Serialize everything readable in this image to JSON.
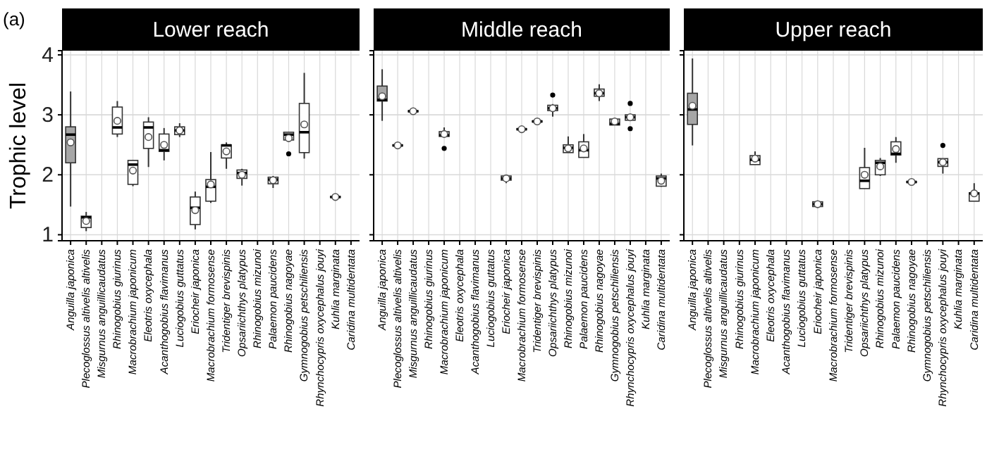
{
  "chart_data": [
    {
      "type": "box",
      "title": "Lower reach",
      "ylabel": "Trophic level",
      "annotations": [
        "(a)"
      ],
      "ylim": [
        0.9,
        4.07
      ],
      "yticks": [
        1,
        2,
        3,
        4
      ],
      "grid": true,
      "marker": "circle",
      "categories": [
        "Anguilla japonica",
        "Plecoglossus altivelis altivelis",
        "Misgurnus anguillicaudatus",
        "Rhinogobius giurinus",
        "Macrobrachium japonicum",
        "Eleotris oxycephala",
        "Acanthogobius flavimanus",
        "Luciogobius guttatus",
        "Eriocheir japonica",
        "Macrobrachium formosense",
        "Tridentiger brevispinis",
        "Opsariichthys platypus",
        "Rhinogobius mizunoi",
        "Palaemon paucidens",
        "Rhinogobius nagoyae",
        "Gymnogobius petschiliensis",
        "Rhynchocypris oxycephalus jouyi",
        "Kuhlia marginata",
        "Caridina multidentata"
      ],
      "series": [
        {
          "color": "#a6a6a6",
          "boxes": [
            {
              "low": 1.47,
              "q1": 2.2,
              "median": 2.67,
              "q3": 2.8,
              "high": 3.39,
              "mean": 2.54
            },
            null,
            null,
            null,
            null,
            null,
            null,
            null,
            null,
            null,
            null,
            null,
            null,
            null,
            null,
            null,
            null,
            null,
            null
          ]
        },
        {
          "color": "#ffffff",
          "boxes": [
            null,
            {
              "low": 1.06,
              "q1": 1.12,
              "median": 1.29,
              "q3": 1.31,
              "high": 1.38,
              "mean": 1.23
            },
            null,
            {
              "low": 2.63,
              "q1": 2.68,
              "median": 2.79,
              "q3": 3.13,
              "high": 3.23,
              "mean": 2.9
            },
            {
              "low": 1.81,
              "q1": 1.84,
              "median": 2.17,
              "q3": 2.24,
              "high": 2.25,
              "mean": 2.07
            },
            {
              "low": 2.13,
              "q1": 2.44,
              "median": 2.79,
              "q3": 2.88,
              "high": 2.96,
              "mean": 2.63
            },
            {
              "low": 2.24,
              "q1": 2.39,
              "median": 2.41,
              "q3": 2.68,
              "high": 2.78,
              "mean": 2.5
            },
            {
              "low": 2.63,
              "q1": 2.67,
              "median": 2.74,
              "q3": 2.8,
              "high": 2.86,
              "mean": 2.74
            },
            {
              "low": 1.09,
              "q1": 1.17,
              "median": 1.45,
              "q3": 1.63,
              "high": 1.72,
              "mean": 1.41
            },
            {
              "low": 1.53,
              "q1": 1.56,
              "median": 1.8,
              "q3": 1.92,
              "high": 2.38,
              "mean": 1.84
            },
            {
              "low": 2.1,
              "q1": 2.28,
              "median": 2.49,
              "q3": 2.5,
              "high": 2.54,
              "mean": 2.39
            },
            {
              "low": 1.82,
              "q1": 1.94,
              "median": 2.03,
              "q3": 2.08,
              "high": 2.1,
              "mean": 2.0
            },
            null,
            {
              "low": 1.78,
              "q1": 1.85,
              "median": 1.92,
              "q3": 1.96,
              "high": 1.98,
              "mean": 1.91
            },
            {
              "low": 2.58,
              "q1": 2.58,
              "median": 2.67,
              "q3": 2.71,
              "high": 2.72,
              "mean": 2.61,
              "outliers": [
                2.35
              ]
            },
            {
              "low": 2.27,
              "q1": 2.37,
              "median": 2.71,
              "q3": 3.19,
              "high": 3.7,
              "mean": 2.84
            },
            null,
            {
              "low": 1.61,
              "q1": 1.62,
              "median": 1.63,
              "q3": 1.64,
              "high": 1.65,
              "mean": 1.63
            },
            null
          ]
        }
      ]
    },
    {
      "type": "box",
      "title": "Middle reach",
      "ylim": [
        0.9,
        4.07
      ],
      "yticks": [
        1,
        2,
        3,
        4
      ],
      "grid": true,
      "marker": "circle",
      "tick_labels": "x",
      "categories": [
        "Anguilla japonica",
        "Plecoglossus altivelis altivelis",
        "Misgurnus anguillicaudatus",
        "Rhinogobius giurinus",
        "Macrobrachium japonicum",
        "Eleotris oxycephala",
        "Acanthogobius flavimanus",
        "Luciogobius guttatus",
        "Eriocheir japonica",
        "Macrobrachium formosense",
        "Tridentiger brevispinis",
        "Opsariichthys platypus",
        "Rhinogobius mizunoi",
        "Palaemon paucidens",
        "Rhinogobius nagoyae",
        "Gymnogobius petschiliensis",
        "Rhynchocypris oxycephalus jouyi",
        "Kuhlia marginata",
        "Caridina multidentata"
      ],
      "series": [
        {
          "color": "#a6a6a6",
          "boxes": [
            {
              "low": 2.9,
              "q1": 3.23,
              "median": 3.25,
              "q3": 3.48,
              "high": 3.76,
              "mean": 3.31
            },
            null,
            null,
            null,
            null,
            null,
            null,
            null,
            null,
            null,
            null,
            null,
            null,
            null,
            null,
            null,
            null,
            null,
            null
          ]
        },
        {
          "color": "#ffffff",
          "boxes": [
            null,
            {
              "low": 2.47,
              "q1": 2.48,
              "median": 2.49,
              "q3": 2.5,
              "high": 2.51,
              "mean": 2.49
            },
            {
              "low": 3.04,
              "q1": 3.05,
              "median": 3.06,
              "q3": 3.07,
              "high": 3.08,
              "mean": 3.06
            },
            null,
            {
              "low": 2.62,
              "q1": 2.64,
              "median": 2.66,
              "q3": 2.72,
              "high": 2.79,
              "mean": 2.68,
              "outliers": [
                2.44
              ]
            },
            null,
            null,
            null,
            {
              "low": 1.86,
              "q1": 1.91,
              "median": 1.94,
              "q3": 1.98,
              "high": 1.98,
              "mean": 1.94
            },
            {
              "low": 2.74,
              "q1": 2.75,
              "median": 2.76,
              "q3": 2.77,
              "high": 2.78,
              "mean": 2.76
            },
            {
              "low": 2.87,
              "q1": 2.88,
              "median": 2.89,
              "q3": 2.9,
              "high": 2.91,
              "mean": 2.89
            },
            {
              "low": 2.97,
              "q1": 3.07,
              "median": 3.11,
              "q3": 3.16,
              "high": 3.18,
              "mean": 3.11,
              "outliers": [
                3.33
              ]
            },
            {
              "low": 2.37,
              "q1": 2.37,
              "median": 2.45,
              "q3": 2.5,
              "high": 2.64,
              "mean": 2.44
            },
            {
              "low": 2.29,
              "q1": 2.29,
              "median": 2.41,
              "q3": 2.55,
              "high": 2.68,
              "mean": 2.44
            },
            {
              "low": 3.23,
              "q1": 3.31,
              "median": 3.36,
              "q3": 3.43,
              "high": 3.51,
              "mean": 3.36
            },
            {
              "low": 2.83,
              "q1": 2.83,
              "median": 2.85,
              "q3": 2.93,
              "high": 2.95,
              "mean": 2.89
            },
            {
              "low": 2.9,
              "q1": 2.91,
              "median": 2.96,
              "q3": 3.0,
              "high": 3.01,
              "mean": 2.96,
              "outliers": [
                3.19,
                2.77
              ]
            },
            null,
            {
              "low": 1.8,
              "q1": 1.81,
              "median": 1.94,
              "q3": 1.98,
              "high": 2.02,
              "mean": 1.9
            }
          ]
        }
      ]
    },
    {
      "type": "box",
      "title": "Upper reach",
      "ylim": [
        0.9,
        4.07
      ],
      "yticks": [
        1,
        2,
        3,
        4
      ],
      "grid": true,
      "marker": "circle",
      "tick_labels": "x",
      "categories": [
        "Anguilla japonica",
        "Plecoglossus altivelis altivelis",
        "Misgurnus anguillicaudatus",
        "Rhinogobius giurinus",
        "Macrobrachium japonicum",
        "Eleotris oxycephala",
        "Acanthogobius flavimanus",
        "Luciogobius guttatus",
        "Eriocheir japonica",
        "Macrobrachium formosense",
        "Tridentiger brevispinis",
        "Opsariichthys platypus",
        "Rhinogobius mizunoi",
        "Palaemon paucidens",
        "Rhinogobius nagoyae",
        "Gymnogobius petschiliensis",
        "Rhynchocypris oxycephalus jouyi",
        "Kuhlia marginata",
        "Caridina multidentata"
      ],
      "series": [
        {
          "color": "#a6a6a6",
          "boxes": [
            {
              "low": 2.49,
              "q1": 2.84,
              "median": 3.09,
              "q3": 3.36,
              "high": 3.94,
              "mean": 3.15
            },
            null,
            null,
            null,
            null,
            null,
            null,
            null,
            null,
            null,
            null,
            null,
            null,
            null,
            null,
            null,
            null,
            null,
            null
          ]
        },
        {
          "color": "#ffffff",
          "boxes": [
            null,
            null,
            null,
            null,
            {
              "low": 2.17,
              "q1": 2.17,
              "median": 2.25,
              "q3": 2.32,
              "high": 2.39,
              "mean": 2.27
            },
            null,
            null,
            null,
            {
              "low": 1.47,
              "q1": 1.47,
              "median": 1.51,
              "q3": 1.55,
              "high": 1.55,
              "mean": 1.51
            },
            null,
            null,
            {
              "low": 1.77,
              "q1": 1.77,
              "median": 1.9,
              "q3": 2.12,
              "high": 2.45,
              "mean": 2.0
            },
            {
              "low": 1.98,
              "q1": 2.0,
              "median": 2.2,
              "q3": 2.24,
              "high": 2.28,
              "mean": 2.14
            },
            {
              "low": 2.2,
              "q1": 2.33,
              "median": 2.35,
              "q3": 2.55,
              "high": 2.63,
              "mean": 2.43
            },
            {
              "low": 1.86,
              "q1": 1.87,
              "median": 1.88,
              "q3": 1.89,
              "high": 1.9,
              "mean": 1.88
            },
            null,
            {
              "low": 2.02,
              "q1": 2.14,
              "median": 2.21,
              "q3": 2.27,
              "high": 2.27,
              "mean": 2.21,
              "outliers": [
                2.49
              ]
            },
            null,
            {
              "low": 1.56,
              "q1": 1.56,
              "median": 1.69,
              "q3": 1.7,
              "high": 1.86,
              "mean": 1.69
            }
          ]
        }
      ]
    }
  ]
}
